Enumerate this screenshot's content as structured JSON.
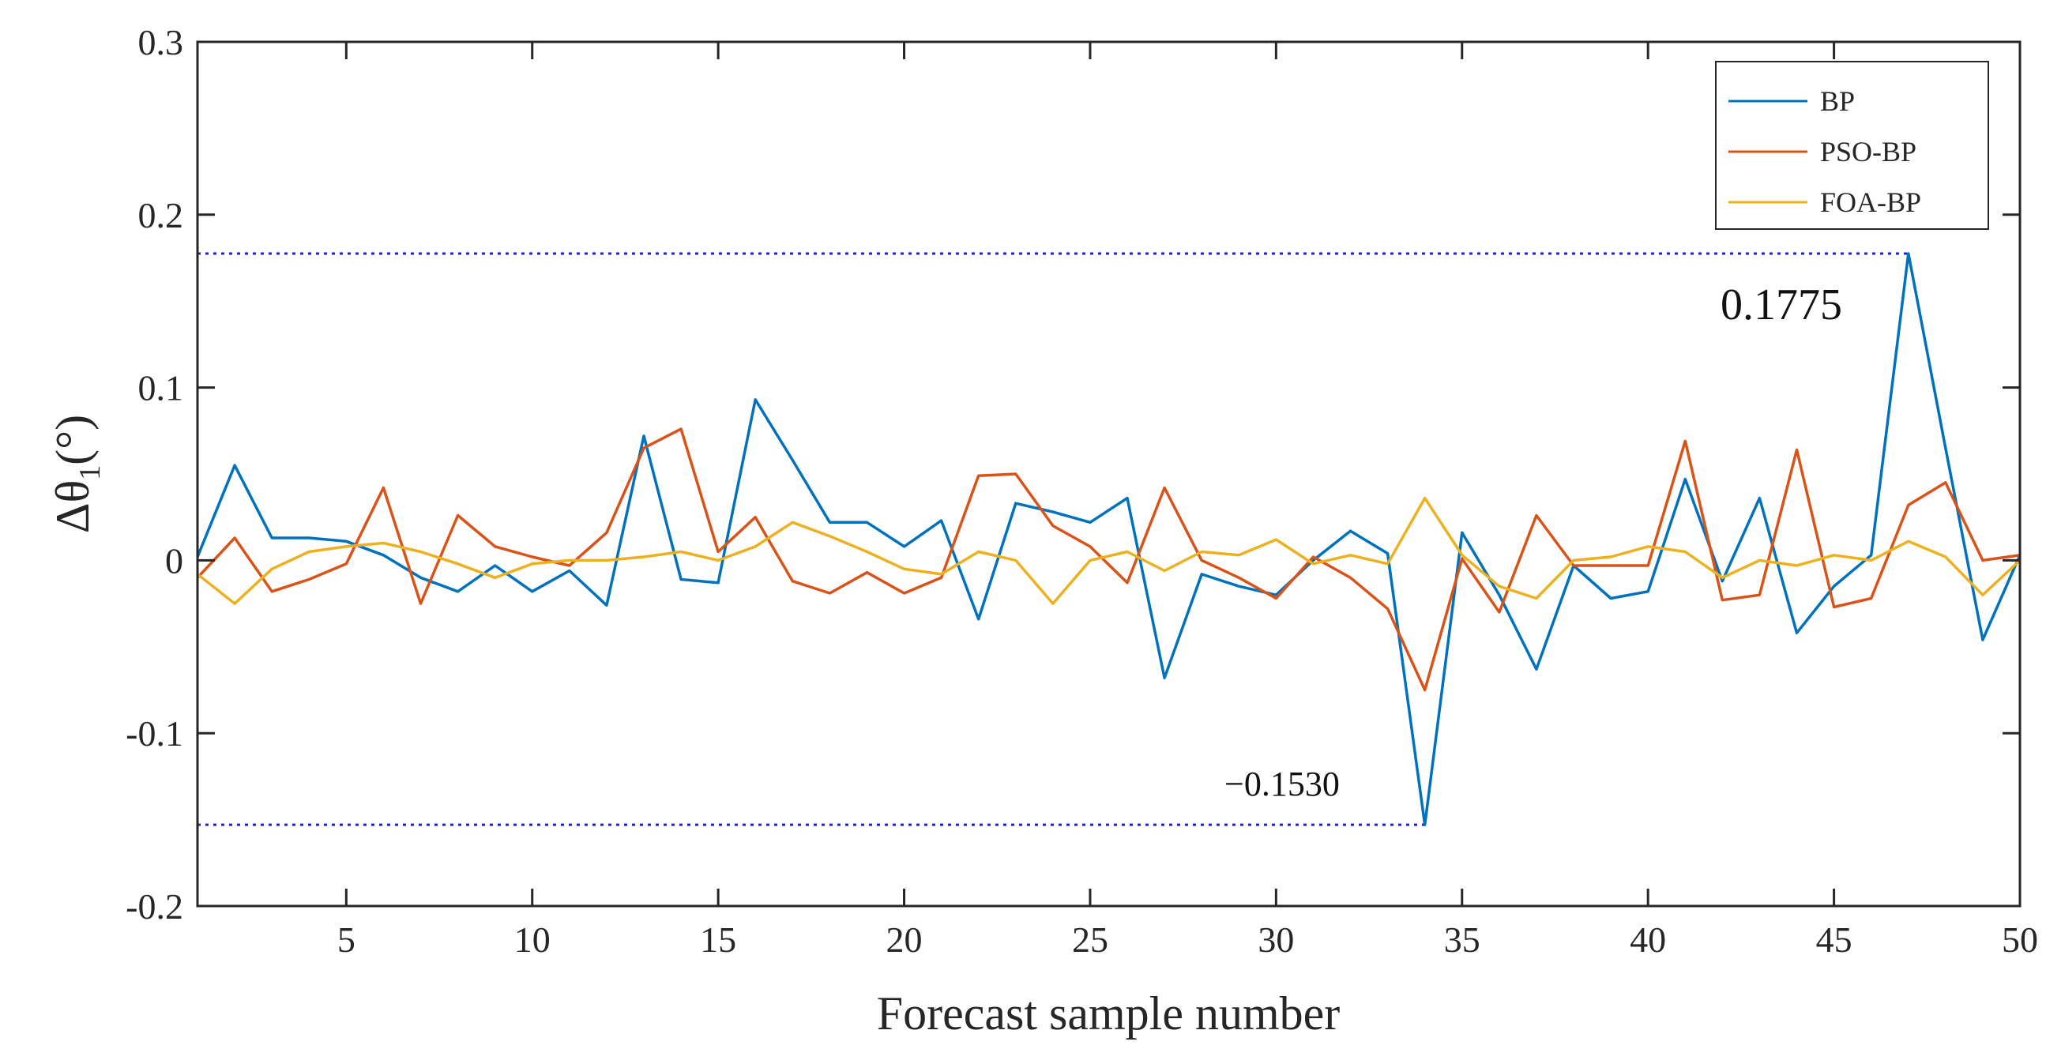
{
  "chart_data": {
    "type": "line",
    "xlabel": "Forecast sample number",
    "ylabel_main": "Δθ",
    "ylabel_sub": "1",
    "ylabel_unit": "(°)",
    "xlim": [
      1,
      50
    ],
    "ylim": [
      -0.2,
      0.3
    ],
    "xticks": [
      5,
      10,
      15,
      20,
      25,
      30,
      35,
      40,
      45,
      50
    ],
    "yticks": [
      -0.2,
      -0.1,
      0,
      0.1,
      0.2,
      0.3
    ],
    "ytick_labels": [
      "-0.2",
      "-0.1",
      "0",
      "0.1",
      "0.2",
      "0.3"
    ],
    "grid": false,
    "legend_position": "top-right",
    "x": [
      1,
      2,
      3,
      4,
      5,
      6,
      7,
      8,
      9,
      10,
      11,
      12,
      13,
      14,
      15,
      16,
      17,
      18,
      19,
      20,
      21,
      22,
      23,
      24,
      25,
      26,
      27,
      28,
      29,
      30,
      31,
      32,
      33,
      34,
      35,
      36,
      37,
      38,
      39,
      40,
      41,
      42,
      43,
      44,
      45,
      46,
      47,
      48,
      49,
      50
    ],
    "series": [
      {
        "name": "BP",
        "color": "#0072BD",
        "values": [
          0.002,
          0.055,
          0.013,
          0.013,
          0.011,
          0.003,
          -0.01,
          -0.018,
          -0.003,
          -0.018,
          -0.006,
          -0.026,
          0.072,
          -0.011,
          -0.013,
          0.093,
          0.058,
          0.022,
          0.022,
          0.008,
          0.023,
          -0.034,
          0.033,
          0.028,
          0.022,
          0.036,
          -0.068,
          -0.008,
          -0.015,
          -0.02,
          0.0,
          0.017,
          0.004,
          -0.153,
          0.016,
          -0.02,
          -0.063,
          -0.003,
          -0.022,
          -0.018,
          0.047,
          -0.012,
          0.036,
          -0.042,
          -0.015,
          0.003,
          0.1775,
          0.065,
          -0.046,
          0.003
        ]
      },
      {
        "name": "PSO-BP",
        "color": "#D95319",
        "values": [
          -0.01,
          0.013,
          -0.018,
          -0.011,
          -0.002,
          0.042,
          -0.025,
          0.026,
          0.008,
          0.002,
          -0.003,
          0.016,
          0.065,
          0.076,
          0.005,
          0.025,
          -0.012,
          -0.019,
          -0.007,
          -0.019,
          -0.01,
          0.049,
          0.05,
          0.02,
          0.008,
          -0.013,
          0.042,
          0.0,
          -0.01,
          -0.022,
          0.002,
          -0.01,
          -0.028,
          -0.075,
          0.001,
          -0.03,
          0.026,
          -0.003,
          -0.003,
          -0.003,
          0.069,
          -0.023,
          -0.02,
          0.064,
          -0.027,
          -0.022,
          0.032,
          0.045,
          0.0,
          0.003
        ]
      },
      {
        "name": "FOA-BP",
        "color": "#EDB120",
        "values": [
          -0.008,
          -0.025,
          -0.005,
          0.005,
          0.008,
          0.01,
          0.005,
          -0.002,
          -0.01,
          -0.002,
          0.0,
          0.0,
          0.002,
          0.005,
          0.0,
          0.008,
          0.022,
          0.014,
          0.005,
          -0.005,
          -0.008,
          0.005,
          0.0,
          -0.025,
          0.0,
          0.005,
          -0.006,
          0.005,
          0.003,
          0.012,
          -0.002,
          0.003,
          -0.002,
          0.036,
          0.003,
          -0.015,
          -0.022,
          0.0,
          0.002,
          0.008,
          0.005,
          -0.01,
          0.0,
          -0.003,
          0.003,
          0.0,
          0.011,
          0.002,
          -0.02,
          0.0
        ]
      }
    ],
    "annotations": [
      {
        "text": "0.1775",
        "x": 47,
        "y": 0.1775
      },
      {
        "text": "−0.1530",
        "x": 34,
        "y": -0.153
      }
    ],
    "reference_lines_color": "#1f1fd0"
  }
}
